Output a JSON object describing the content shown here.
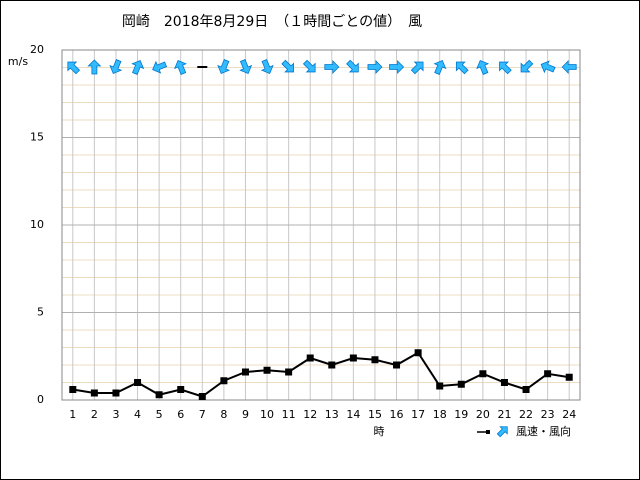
{
  "chart_data": {
    "type": "line",
    "title": "岡崎　2018年8月29日　（１時間ごとの値）　風",
    "y_label": "m/s",
    "x_label": "時",
    "legend_label": "風速・風向",
    "x": [
      1,
      2,
      3,
      4,
      5,
      6,
      7,
      8,
      9,
      10,
      11,
      12,
      13,
      14,
      15,
      16,
      17,
      18,
      19,
      20,
      21,
      22,
      23,
      24
    ],
    "xlim": [
      0.5,
      24.5
    ],
    "ylim": [
      0,
      20
    ],
    "yticks": [
      0,
      5,
      10,
      15,
      20
    ],
    "minor_grid_step": 1,
    "series": [
      {
        "name": "風速",
        "color": "#000000",
        "values": [
          0.6,
          0.4,
          0.4,
          1.0,
          0.3,
          0.6,
          0.2,
          1.1,
          1.6,
          1.7,
          1.6,
          2.4,
          2.0,
          2.4,
          2.3,
          2.0,
          2.7,
          0.8,
          0.9,
          1.5,
          1.0,
          0.6,
          1.5,
          1.3
        ]
      }
    ],
    "directions": [
      315,
      0,
      202.5,
      22.5,
      247.5,
      337.5,
      null,
      202.5,
      157.5,
      157.5,
      135,
      135,
      90,
      135,
      90,
      90,
      45,
      22.5,
      315,
      337.5,
      315,
      225,
      292.5,
      270
    ],
    "arrow_color": "#33bbff"
  }
}
